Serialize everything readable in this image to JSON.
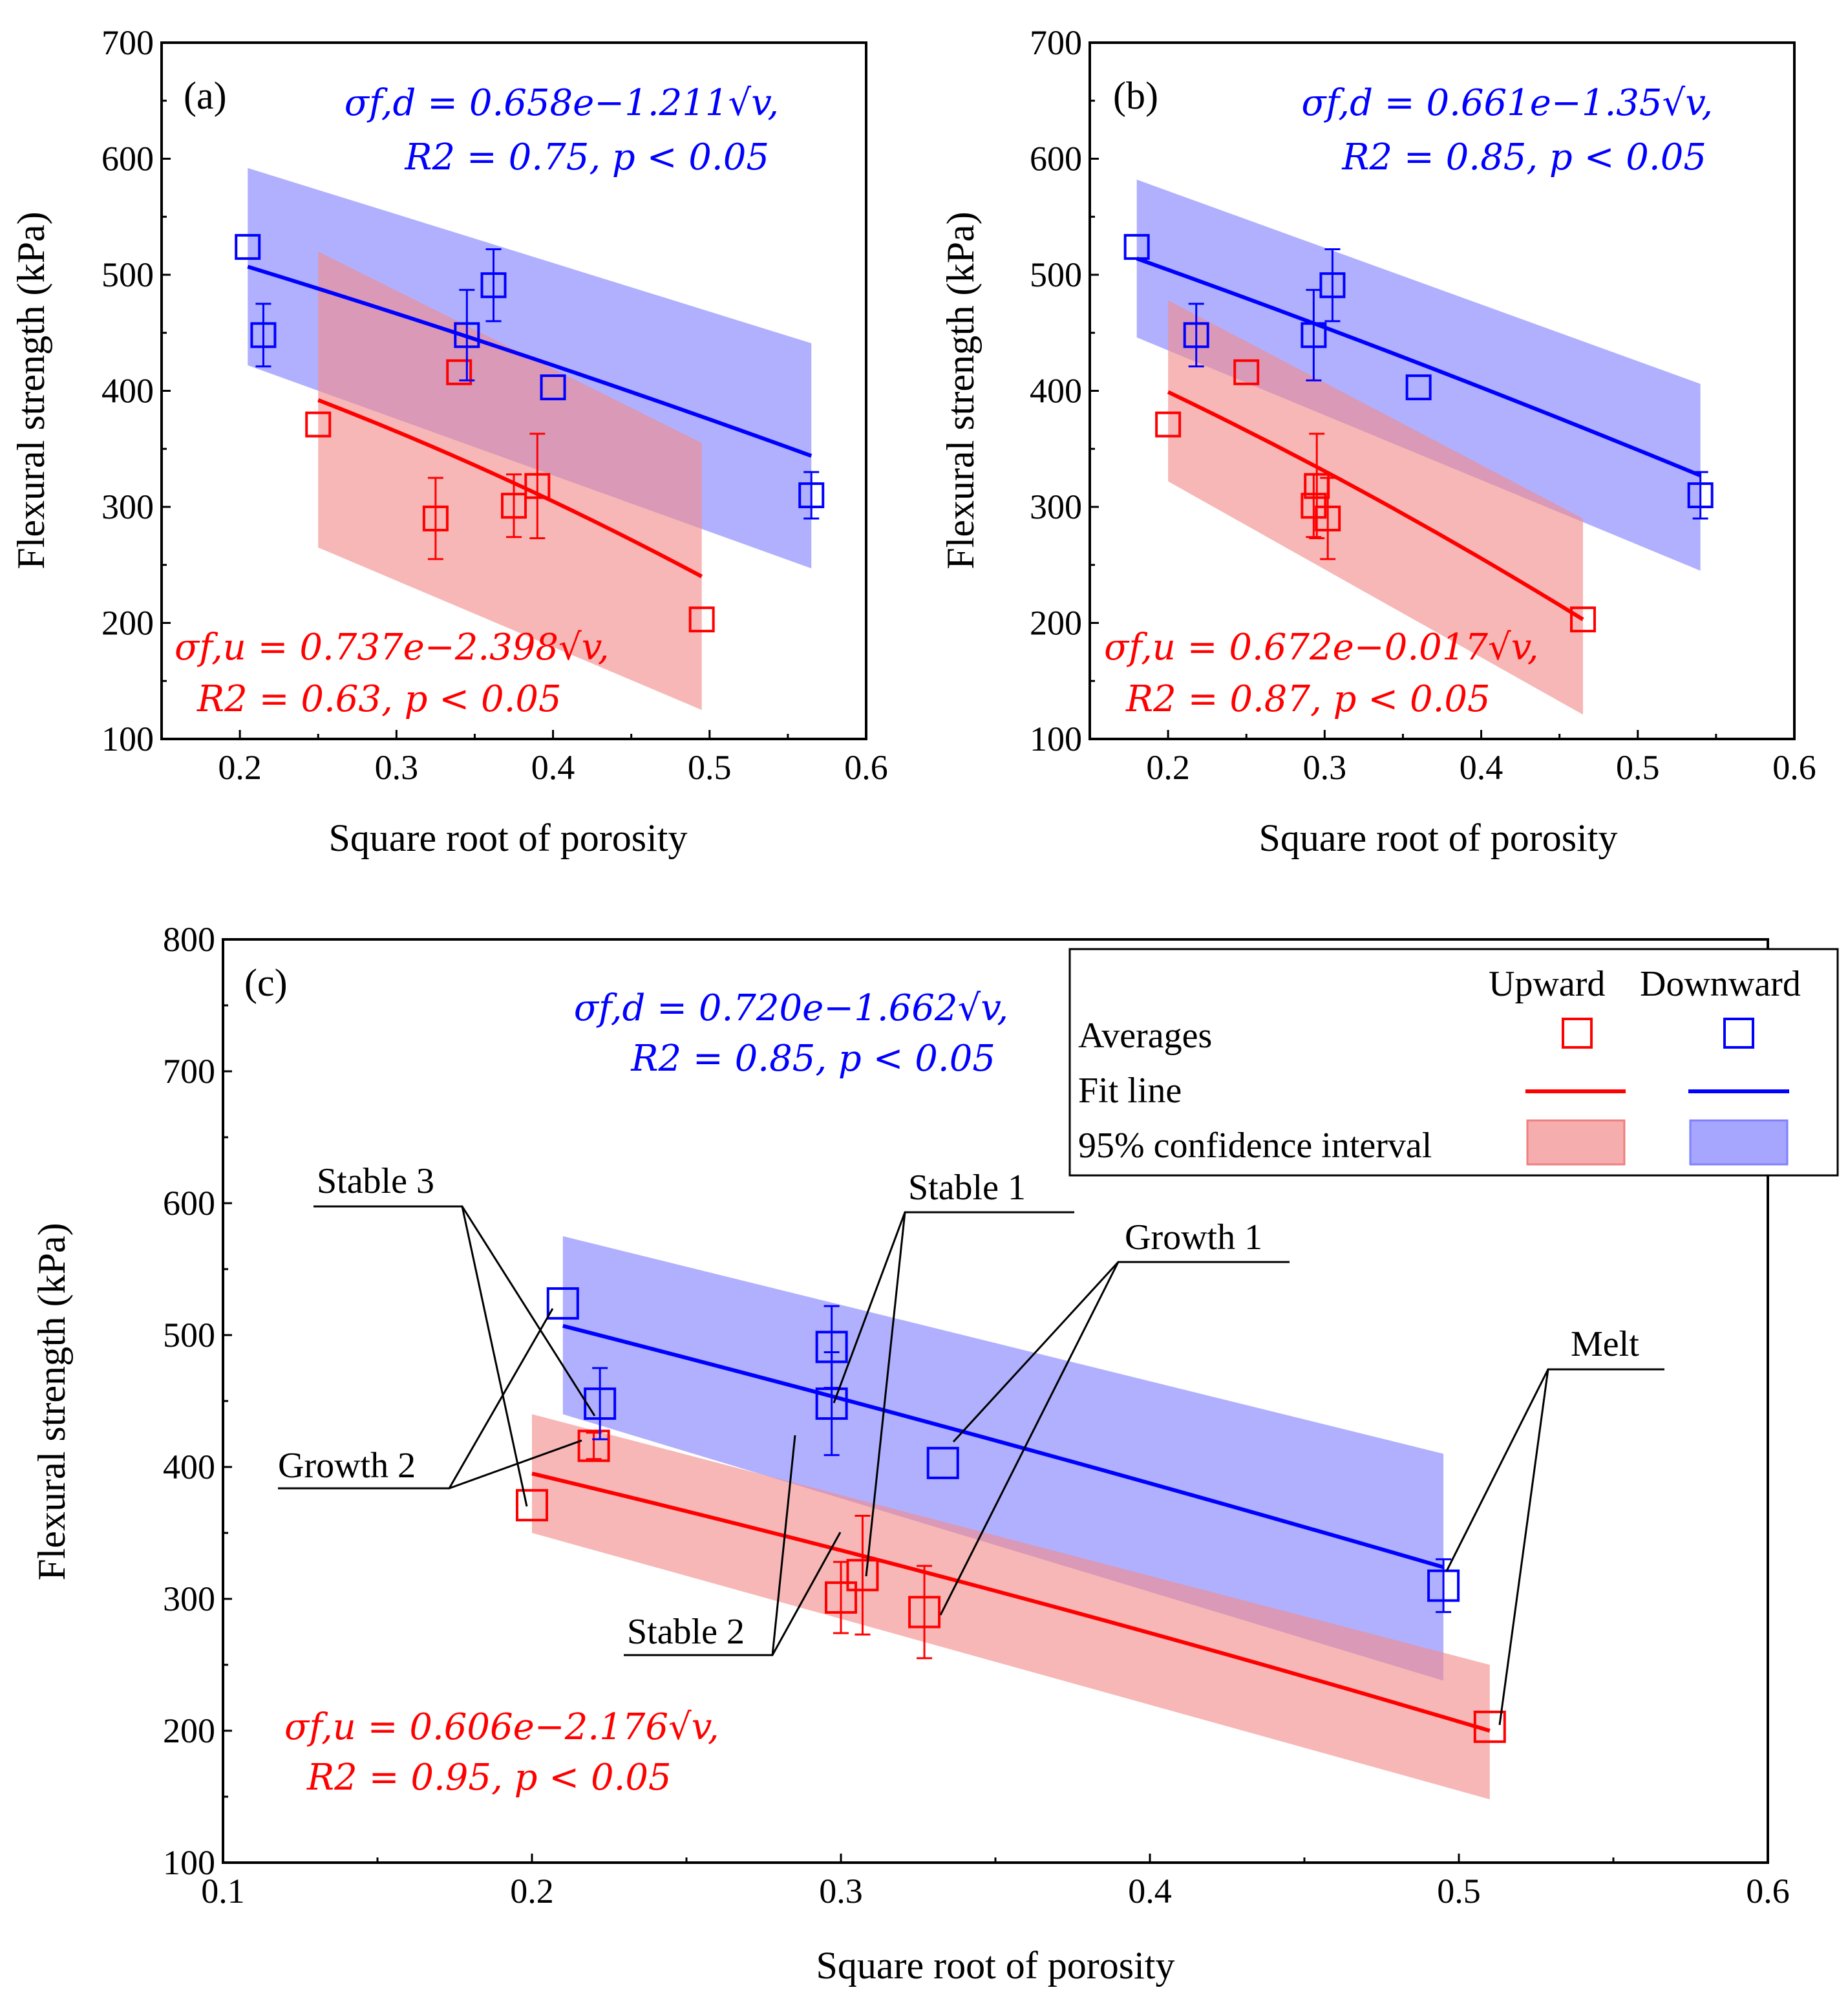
{
  "colors": {
    "upward": "#ff0000",
    "downward": "#0000ff",
    "upward_band": "#f28a8a",
    "downward_band": "#8080ff",
    "overlap_band": "#c05aa8"
  },
  "x_axis_label": "Square root of porosity",
  "y_axis_label": "Flexural strength (kPa)",
  "chart_data": [
    {
      "type": "scatter",
      "panel": "(a)",
      "xlabel": "Square root of porosity",
      "ylabel": "Flexural strength (kPa)",
      "xlim": [
        0.15,
        0.6
      ],
      "ylim": [
        100,
        700
      ],
      "xticks": [
        "0.2",
        "0.3",
        "0.4",
        "0.5",
        "0.6"
      ],
      "yticks": [
        "100",
        "200",
        "300",
        "400",
        "500",
        "600",
        "700"
      ],
      "equations": {
        "downward_line1": "σf,d = 0.658e−1.211√v,",
        "downward_line2": "R2 = 0.75, p < 0.05",
        "upward_line1": "σf,u = 0.737e−2.398√v,",
        "upward_line2": "R2 = 0.63, p < 0.05"
      },
      "series": [
        {
          "name": "Upward",
          "color": "#ff0000",
          "points": [
            {
              "x": 0.25,
              "y": 371,
              "err": 0
            },
            {
              "x": 0.325,
              "y": 290,
              "err": 35
            },
            {
              "x": 0.34,
              "y": 416,
              "err": 0
            },
            {
              "x": 0.375,
              "y": 301,
              "err": 27
            },
            {
              "x": 0.39,
              "y": 318,
              "err": 45
            },
            {
              "x": 0.495,
              "y": 203,
              "err": 0
            }
          ],
          "fit": {
            "x0": 0.25,
            "x1": 0.495,
            "y0": 392,
            "y1": 240
          },
          "band": {
            "upper": [
              [
                0.25,
                520
              ],
              [
                0.495,
                355
              ]
            ],
            "lower": [
              [
                0.25,
                265
              ],
              [
                0.495,
                125
              ]
            ]
          }
        },
        {
          "name": "Downward",
          "color": "#0000ff",
          "points": [
            {
              "x": 0.205,
              "y": 524,
              "err": 0
            },
            {
              "x": 0.215,
              "y": 448,
              "err": 27
            },
            {
              "x": 0.345,
              "y": 448,
              "err": 39
            },
            {
              "x": 0.362,
              "y": 491,
              "err": 31
            },
            {
              "x": 0.4,
              "y": 403,
              "err": 0
            },
            {
              "x": 0.565,
              "y": 310,
              "err": 20
            }
          ],
          "fit": {
            "x0": 0.205,
            "x1": 0.565,
            "y0": 507,
            "y1": 344
          },
          "band": {
            "upper": [
              [
                0.205,
                592
              ],
              [
                0.565,
                441
              ]
            ],
            "lower": [
              [
                0.205,
                422
              ],
              [
                0.565,
                247
              ]
            ]
          }
        }
      ]
    },
    {
      "type": "scatter",
      "panel": "(b)",
      "xlabel": "Square root of porosity",
      "ylabel": "Flexural strength (kPa)",
      "xlim": [
        0.15,
        0.6
      ],
      "ylim": [
        100,
        700
      ],
      "xticks": [
        "0.2",
        "0.3",
        "0.4",
        "0.5",
        "0.6"
      ],
      "yticks": [
        "100",
        "200",
        "300",
        "400",
        "500",
        "600",
        "700"
      ],
      "equations": {
        "downward_line1": "σf,d = 0.661e−1.35√v,",
        "downward_line2": "R2 = 0.85, p < 0.05",
        "upward_line1": "σf,u = 0.672e−0.017√v,",
        "upward_line2": "R2 = 0.87, p < 0.05"
      },
      "series": [
        {
          "name": "Upward",
          "color": "#ff0000",
          "points": [
            {
              "x": 0.2,
              "y": 371,
              "err": 0
            },
            {
              "x": 0.25,
              "y": 416,
              "err": 0
            },
            {
              "x": 0.293,
              "y": 301,
              "err": 27
            },
            {
              "x": 0.295,
              "y": 318,
              "err": 45
            },
            {
              "x": 0.302,
              "y": 290,
              "err": 35
            },
            {
              "x": 0.465,
              "y": 203,
              "err": 0
            }
          ],
          "fit": {
            "x0": 0.2,
            "x1": 0.465,
            "y0": 399,
            "y1": 203
          },
          "band": {
            "upper": [
              [
                0.2,
                478
              ],
              [
                0.465,
                290
              ]
            ],
            "lower": [
              [
                0.2,
                322
              ],
              [
                0.465,
                121
              ]
            ]
          }
        },
        {
          "name": "Downward",
          "color": "#0000ff",
          "points": [
            {
              "x": 0.18,
              "y": 524,
              "err": 0
            },
            {
              "x": 0.218,
              "y": 448,
              "err": 27
            },
            {
              "x": 0.293,
              "y": 448,
              "err": 39
            },
            {
              "x": 0.305,
              "y": 491,
              "err": 31
            },
            {
              "x": 0.36,
              "y": 403,
              "err": 0
            },
            {
              "x": 0.54,
              "y": 310,
              "err": 20
            }
          ],
          "fit": {
            "x0": 0.18,
            "x1": 0.54,
            "y0": 514,
            "y1": 327
          },
          "band": {
            "upper": [
              [
                0.18,
                582
              ],
              [
                0.54,
                406
              ]
            ],
            "lower": [
              [
                0.18,
                446
              ],
              [
                0.54,
                245
              ]
            ]
          }
        }
      ]
    },
    {
      "type": "scatter",
      "panel": "(c)",
      "xlabel": "Square root of porosity",
      "ylabel": "Flexural strength (kPa)",
      "xlim": [
        0.1,
        0.6
      ],
      "ylim": [
        100,
        800
      ],
      "xticks": [
        "0.1",
        "0.2",
        "0.3",
        "0.4",
        "0.5",
        "0.6"
      ],
      "yticks": [
        "100",
        "200",
        "300",
        "400",
        "500",
        "600",
        "700",
        "800"
      ],
      "equations": {
        "downward_line1": "σf,d = 0.720e−1.662√v,",
        "downward_line2": "R2 = 0.85, p < 0.05",
        "upward_line1": "σf,u = 0.606e−2.176√v,",
        "upward_line2": "R2 = 0.95, p < 0.05"
      },
      "legend": {
        "position": "top-right",
        "col_upward": "Upward",
        "col_downward": "Downward",
        "row_averages": "Averages",
        "row_fit": "Fit line",
        "row_ci": "95% confidence interval"
      },
      "annotations": {
        "stable3": "Stable 3",
        "stable1": "Stable 1",
        "growth1": "Growth 1",
        "growth2": "Growth 2",
        "stable2": "Stable 2",
        "melt": "Melt"
      },
      "series": [
        {
          "name": "Upward",
          "color": "#ff0000",
          "points": [
            {
              "x": 0.2,
              "y": 371,
              "err": 0
            },
            {
              "x": 0.22,
              "y": 416,
              "err": 10
            },
            {
              "x": 0.3,
              "y": 301,
              "err": 27
            },
            {
              "x": 0.307,
              "y": 318,
              "err": 45
            },
            {
              "x": 0.327,
              "y": 290,
              "err": 35
            },
            {
              "x": 0.51,
              "y": 203,
              "err": 0
            }
          ],
          "fit": {
            "x0": 0.2,
            "x1": 0.51,
            "y0": 395,
            "y1": 200
          },
          "band": {
            "upper": [
              [
                0.2,
                440
              ],
              [
                0.51,
                250
              ]
            ],
            "lower": [
              [
                0.2,
                350
              ],
              [
                0.51,
                148
              ]
            ]
          }
        },
        {
          "name": "Downward",
          "color": "#0000ff",
          "points": [
            {
              "x": 0.21,
              "y": 524,
              "err": 0
            },
            {
              "x": 0.222,
              "y": 448,
              "err": 27
            },
            {
              "x": 0.297,
              "y": 491,
              "err": 31
            },
            {
              "x": 0.297,
              "y": 448,
              "err": 39
            },
            {
              "x": 0.333,
              "y": 403,
              "err": 0
            },
            {
              "x": 0.495,
              "y": 310,
              "err": 20
            }
          ],
          "fit": {
            "x0": 0.21,
            "x1": 0.495,
            "y0": 507,
            "y1": 324
          },
          "band": {
            "upper": [
              [
                0.21,
                575
              ],
              [
                0.495,
                410
              ]
            ],
            "lower": [
              [
                0.21,
                440
              ],
              [
                0.495,
                238
              ]
            ]
          }
        }
      ]
    }
  ]
}
